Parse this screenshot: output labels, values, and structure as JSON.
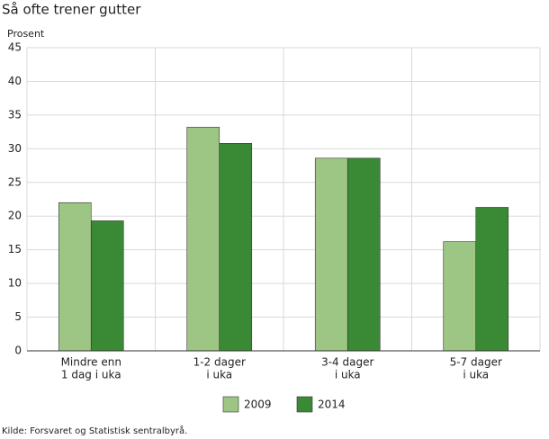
{
  "chart_data": {
    "type": "bar",
    "title": "Så ofte trener gutter",
    "y_label": "Prosent",
    "categories": [
      [
        "Mindre enn",
        "1 dag i uka"
      ],
      [
        "1-2 dager",
        "i uka"
      ],
      [
        "3-4 dager",
        "i uka"
      ],
      [
        "5-7 dager",
        "i uka"
      ]
    ],
    "series": [
      {
        "name": "2009",
        "color": "#9dc583",
        "values": [
          22,
          33.2,
          28.6,
          16.2
        ]
      },
      {
        "name": "2014",
        "color": "#3a8a35",
        "values": [
          19.3,
          30.8,
          28.6,
          21.3
        ]
      }
    ],
    "ylim": [
      0,
      45
    ],
    "yticks": [
      0,
      5,
      10,
      15,
      20,
      25,
      30,
      35,
      40,
      45
    ],
    "grid": true,
    "legend": "bottom",
    "source": "Kilde: Forsvaret og Statistisk sentralbyrå."
  }
}
